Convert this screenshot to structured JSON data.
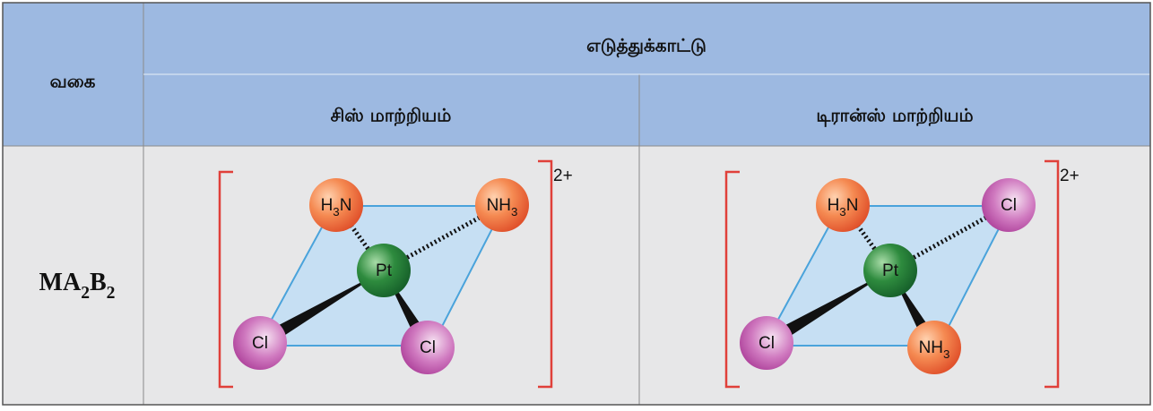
{
  "table": {
    "header": {
      "type": "வகை",
      "example": "எடுத்துக்காட்டு",
      "cis": "சிஸ் மாற்றியம்",
      "trans": "டிரான்ஸ் மாற்றியம்"
    },
    "rows": [
      {
        "type": "MA2B2",
        "cis": {
          "charge": "2+",
          "atoms": [
            "H3N",
            "NH3",
            "Pt",
            "Cl",
            "Cl"
          ]
        },
        "trans": {
          "charge": "2+",
          "atoms": [
            "H3N",
            "Cl",
            "Pt",
            "Cl",
            "NH3"
          ]
        }
      }
    ]
  }
}
